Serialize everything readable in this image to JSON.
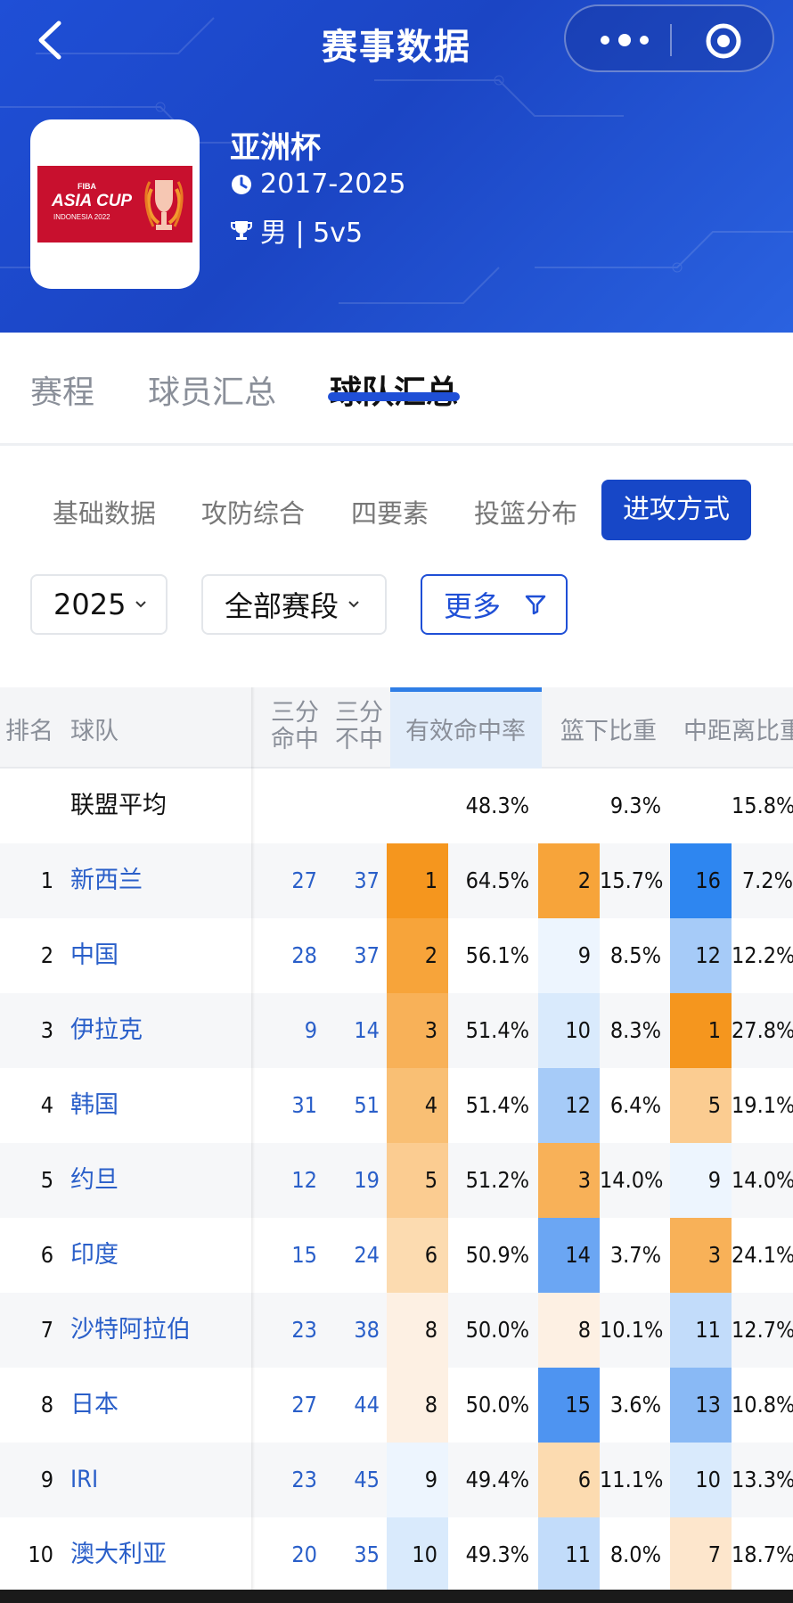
{
  "nav": {
    "title": "赛事数据"
  },
  "competition": {
    "name": "亚洲杯",
    "years": "2017-2025",
    "category": "男 | 5v5",
    "logo": {
      "fiba": "FIBA",
      "line1": "ASIA CUP",
      "line2": "INDONESIA 2022"
    }
  },
  "main_tabs": [
    "赛程",
    "球员汇总",
    "球队汇总"
  ],
  "main_tab_active": "球队汇总",
  "sub_tabs": [
    "基础数据",
    "攻防综合",
    "四要素",
    "投篮分布",
    "进攻方式"
  ],
  "sub_tab_active": "进攻方式",
  "filters": {
    "season": "2025",
    "stage": "全部赛段",
    "more": "更多"
  },
  "table": {
    "headers": {
      "rank": "排名",
      "team": "球队",
      "three_made_a": "三分",
      "three_made_b": "命中",
      "three_miss_a": "三分",
      "three_miss_b": "不中",
      "efg": "有效命中率",
      "paint": "篮下比重",
      "mid": "中距离比重"
    },
    "league_avg": {
      "label": "联盟平均",
      "efg": "48.3%",
      "paint": "9.3%",
      "mid": "15.8%"
    },
    "rows": [
      {
        "rank": "1",
        "team": "新西兰",
        "three_made": "27",
        "three_miss": "37",
        "efg_rank": "1",
        "efg": "64.5%",
        "paint_rank": "2",
        "paint": "15.7%",
        "mid_rank": "16",
        "mid": "7.2%"
      },
      {
        "rank": "2",
        "team": "中国",
        "three_made": "28",
        "three_miss": "37",
        "efg_rank": "2",
        "efg": "56.1%",
        "paint_rank": "9",
        "paint": "8.5%",
        "mid_rank": "12",
        "mid": "12.2%"
      },
      {
        "rank": "3",
        "team": "伊拉克",
        "three_made": "9",
        "three_miss": "14",
        "efg_rank": "3",
        "efg": "51.4%",
        "paint_rank": "10",
        "paint": "8.3%",
        "mid_rank": "1",
        "mid": "27.8%"
      },
      {
        "rank": "4",
        "team": "韩国",
        "three_made": "31",
        "three_miss": "51",
        "efg_rank": "4",
        "efg": "51.4%",
        "paint_rank": "12",
        "paint": "6.4%",
        "mid_rank": "5",
        "mid": "19.1%"
      },
      {
        "rank": "5",
        "team": "约旦",
        "three_made": "12",
        "three_miss": "19",
        "efg_rank": "5",
        "efg": "51.2%",
        "paint_rank": "3",
        "paint": "14.0%",
        "mid_rank": "9",
        "mid": "14.0%"
      },
      {
        "rank": "6",
        "team": "印度",
        "three_made": "15",
        "three_miss": "24",
        "efg_rank": "6",
        "efg": "50.9%",
        "paint_rank": "14",
        "paint": "3.7%",
        "mid_rank": "3",
        "mid": "24.1%"
      },
      {
        "rank": "7",
        "team": "沙特阿拉伯",
        "three_made": "23",
        "three_miss": "38",
        "efg_rank": "8",
        "efg": "50.0%",
        "paint_rank": "8",
        "paint": "10.1%",
        "mid_rank": "11",
        "mid": "12.7%"
      },
      {
        "rank": "8",
        "team": "日本",
        "three_made": "27",
        "three_miss": "44",
        "efg_rank": "8",
        "efg": "50.0%",
        "paint_rank": "15",
        "paint": "3.6%",
        "mid_rank": "13",
        "mid": "10.8%"
      },
      {
        "rank": "9",
        "team": "IRI",
        "three_made": "23",
        "three_miss": "45",
        "efg_rank": "9",
        "efg": "49.4%",
        "paint_rank": "6",
        "paint": "11.1%",
        "mid_rank": "10",
        "mid": "13.3%"
      },
      {
        "rank": "10",
        "team": "澳大利亚",
        "three_made": "20",
        "three_miss": "35",
        "efg_rank": "10",
        "efg": "49.3%",
        "paint_rank": "11",
        "paint": "8.0%",
        "mid_rank": "7",
        "mid": "18.7%"
      }
    ]
  },
  "colors": {
    "header_blue": "#1f4fd6",
    "active_tab": "#1747c7",
    "link_blue": "#2a5fc9",
    "heat_orange_max": "#f5961e",
    "heat_blue_max": "#2e86f0"
  }
}
